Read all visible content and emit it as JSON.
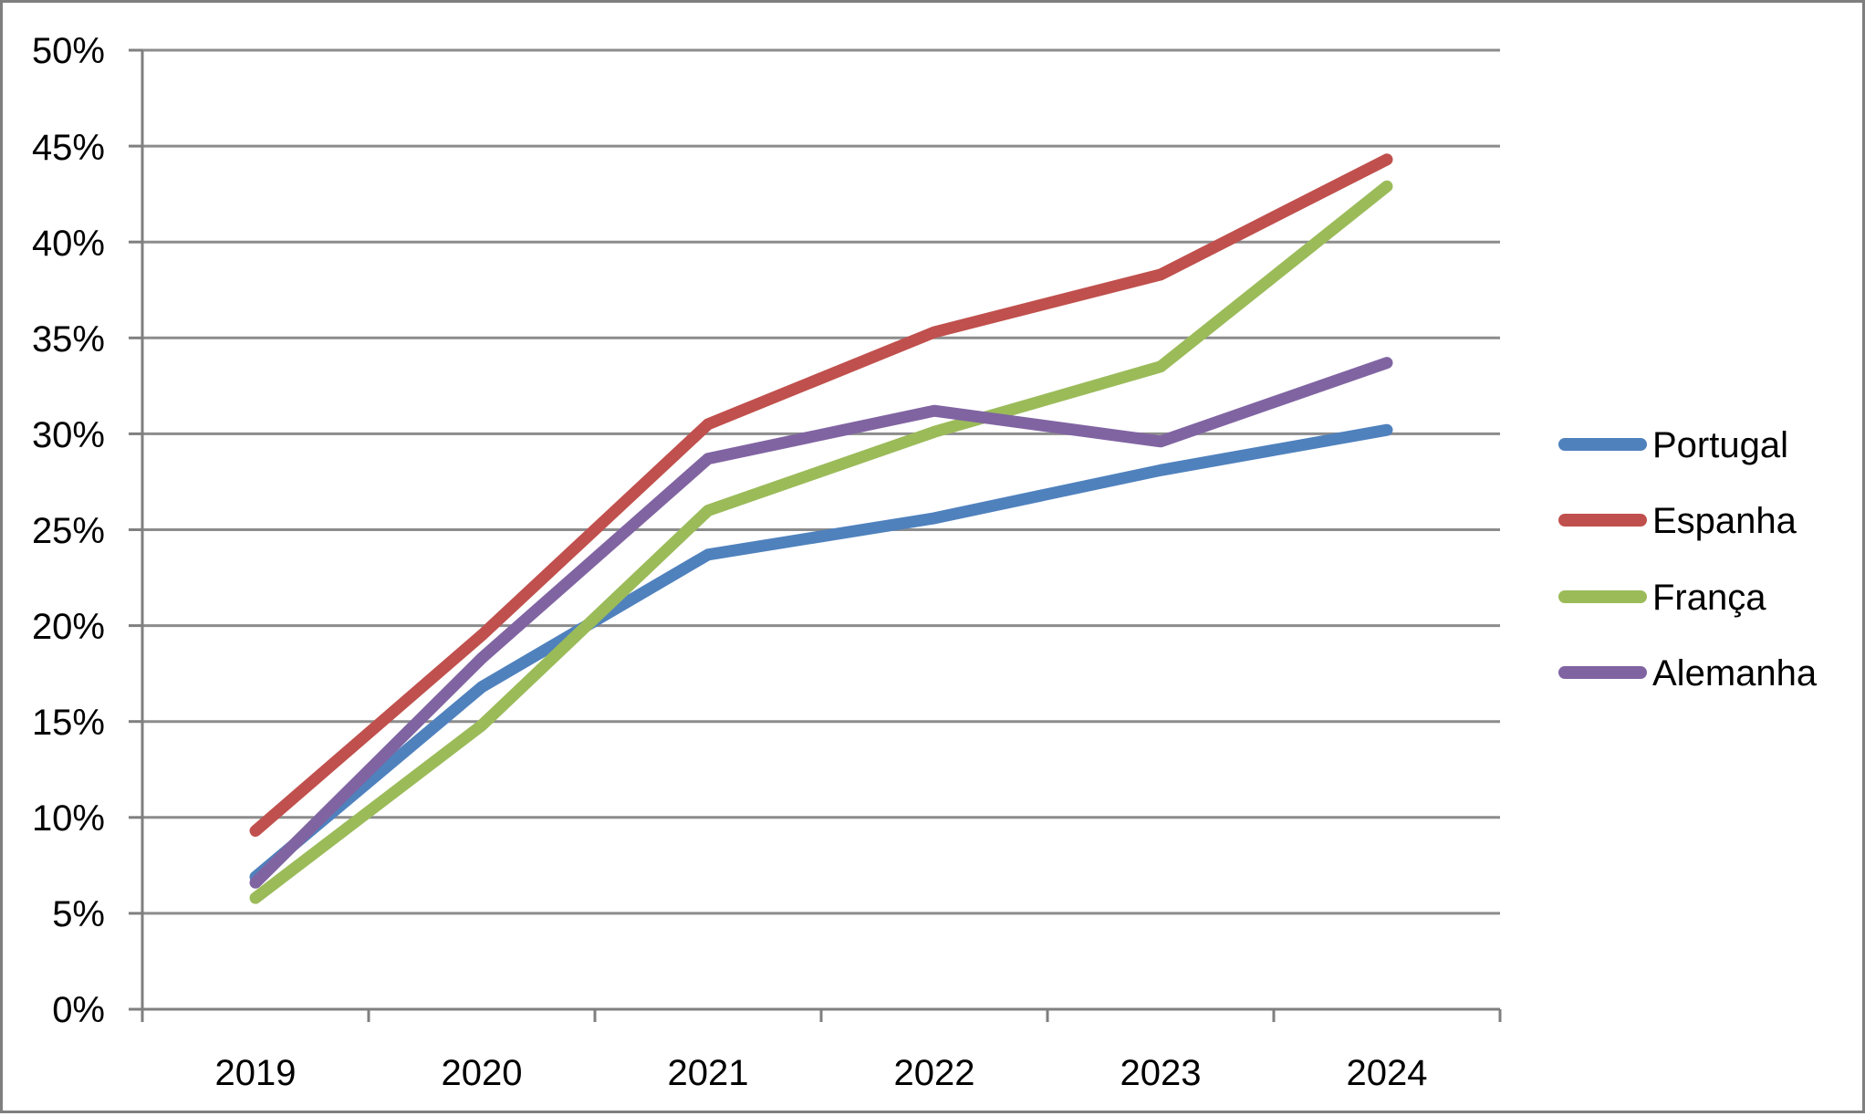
{
  "chart_data": {
    "type": "line",
    "x": [
      "2019",
      "2020",
      "2021",
      "2022",
      "2023",
      "2024"
    ],
    "series": [
      {
        "name": "Portugal",
        "color": "#4F81BD",
        "values": [
          6.9,
          16.8,
          23.7,
          25.6,
          28.1,
          30.2
        ]
      },
      {
        "name": "Espanha",
        "color": "#C0504D",
        "values": [
          9.3,
          19.5,
          30.5,
          35.3,
          38.3,
          44.3
        ]
      },
      {
        "name": "França",
        "color": "#9BBB59",
        "values": [
          5.8,
          14.8,
          26.0,
          30.1,
          33.5,
          42.9
        ]
      },
      {
        "name": "Alemanha",
        "color": "#8064A2",
        "values": [
          6.6,
          18.3,
          28.7,
          31.2,
          29.6,
          33.7
        ]
      }
    ],
    "ylim": [
      0,
      50
    ],
    "ytick_step": 5,
    "ytick_labels": [
      "0%",
      "5%",
      "10%",
      "15%",
      "20%",
      "25%",
      "30%",
      "35%",
      "40%",
      "45%",
      "50%"
    ],
    "grid": true,
    "legend_position": "right",
    "colors": {
      "gridline": "#8C8C8C",
      "axis": "#7F7F7F",
      "text": "#000000",
      "background": "#FFFFFF",
      "border": "#7F7F7F"
    }
  }
}
